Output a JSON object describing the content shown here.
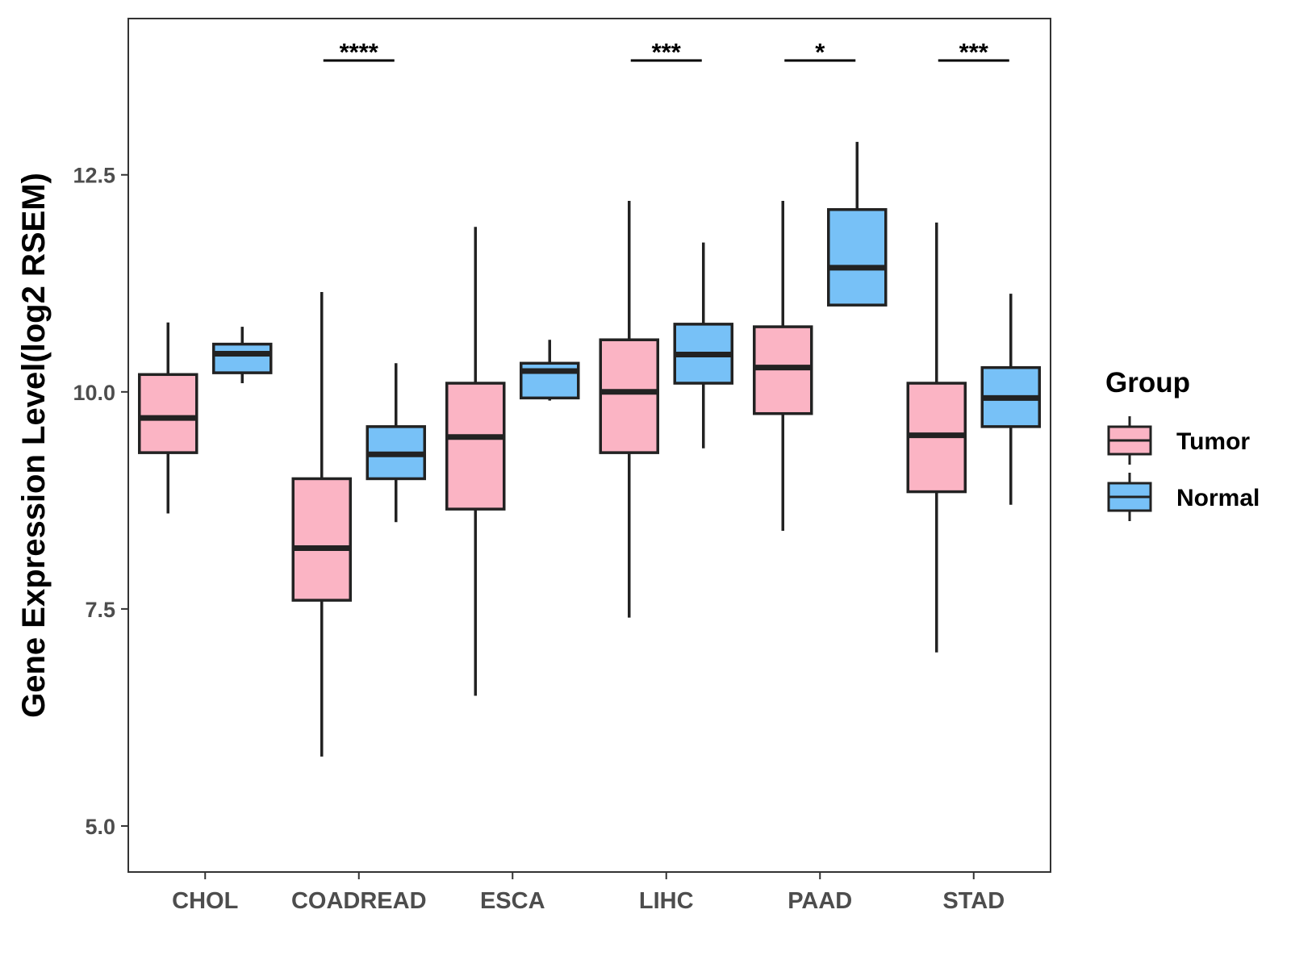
{
  "chart_data": {
    "type": "boxplot",
    "title": "",
    "xlabel": "",
    "ylabel": "Gene Expression Level(log2 RSEM)",
    "ylim": [
      4.47,
      14.3
    ],
    "yticks": [
      5.0,
      7.5,
      10.0,
      12.5
    ],
    "ytick_labels": [
      "5.0",
      "7.5",
      "10.0",
      "12.5"
    ],
    "categories": [
      "CHOL",
      "COADREAD",
      "ESCA",
      "LIHC",
      "PAAD",
      "STAD"
    ],
    "legend": {
      "title": "Group",
      "position": "right",
      "entries": [
        {
          "name": "Tumor",
          "color": "#fbb4c4"
        },
        {
          "name": "Normal",
          "color": "#77c1f7"
        }
      ]
    },
    "series": [
      {
        "name": "Tumor",
        "color": "#fbb4c4",
        "boxes": [
          {
            "min": 8.6,
            "q1": 9.3,
            "median": 9.7,
            "q3": 10.2,
            "max": 10.8
          },
          {
            "min": 5.8,
            "q1": 7.6,
            "median": 8.2,
            "q3": 9.0,
            "max": 11.15
          },
          {
            "min": 6.5,
            "q1": 8.65,
            "median": 9.48,
            "q3": 10.1,
            "max": 11.9
          },
          {
            "min": 7.4,
            "q1": 9.3,
            "median": 10.0,
            "q3": 10.6,
            "max": 12.2
          },
          {
            "min": 8.4,
            "q1": 9.75,
            "median": 10.28,
            "q3": 10.75,
            "max": 12.2
          },
          {
            "min": 7.0,
            "q1": 8.85,
            "median": 9.5,
            "q3": 10.1,
            "max": 11.95
          }
        ]
      },
      {
        "name": "Normal",
        "color": "#77c1f7",
        "boxes": [
          {
            "min": 10.1,
            "q1": 10.22,
            "median": 10.44,
            "q3": 10.55,
            "max": 10.75
          },
          {
            "min": 8.5,
            "q1": 9.0,
            "median": 9.28,
            "q3": 9.6,
            "max": 10.33
          },
          {
            "min": 9.9,
            "q1": 9.93,
            "median": 10.24,
            "q3": 10.33,
            "max": 10.6
          },
          {
            "min": 9.35,
            "q1": 10.1,
            "median": 10.43,
            "q3": 10.78,
            "max": 11.72
          },
          {
            "min": 11.0,
            "q1": 11.0,
            "median": 11.43,
            "q3": 12.1,
            "max": 12.88
          },
          {
            "min": 8.7,
            "q1": 9.6,
            "median": 9.93,
            "q3": 10.28,
            "max": 11.13
          }
        ]
      }
    ],
    "annotations": [
      {
        "category": "CHOL",
        "label": ""
      },
      {
        "category": "COADREAD",
        "label": "****"
      },
      {
        "category": "ESCA",
        "label": ""
      },
      {
        "category": "LIHC",
        "label": "***"
      },
      {
        "category": "PAAD",
        "label": "*"
      },
      {
        "category": "STAD",
        "label": "***"
      }
    ]
  }
}
